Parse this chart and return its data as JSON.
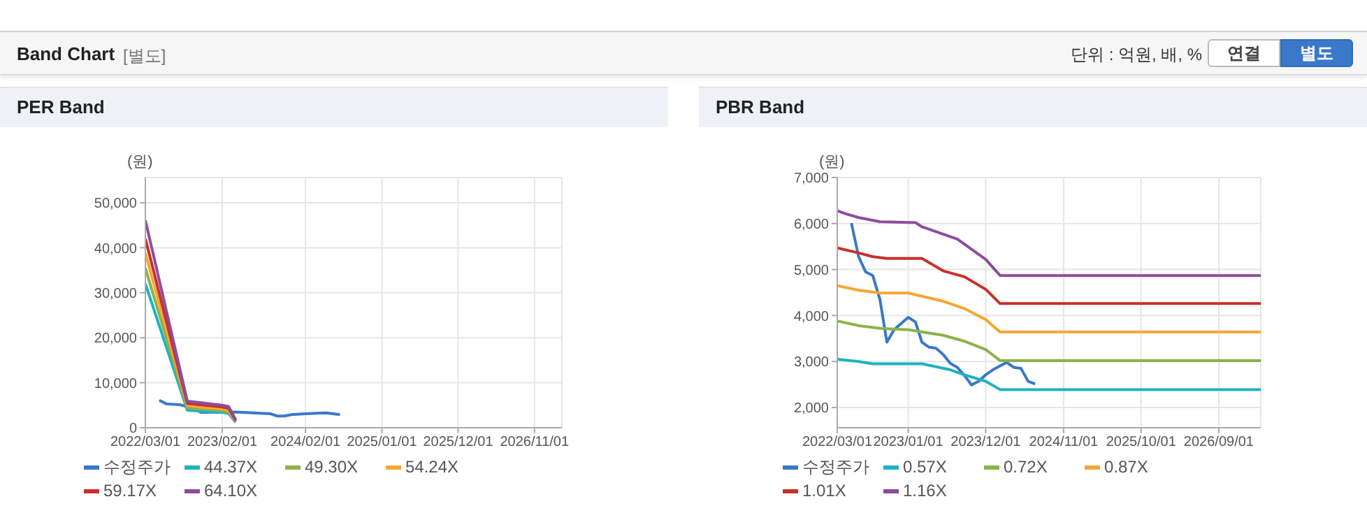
{
  "chart_data": [
    {
      "type": "other",
      "title": "Band Chart",
      "subtitle": "[별도]",
      "annotations": [
        "단위 : 억원, 배, %",
        "연결",
        "별도"
      ]
    },
    {
      "type": "line",
      "title": "PER Band",
      "ylabel": "(원)",
      "grid": true,
      "legend": "bottom",
      "marker": "none",
      "line_style": "solid",
      "xlim": [
        "2022-03-01",
        "2027-03-01"
      ],
      "xticks": [
        {
          "value": "2022-03-01",
          "label": "2022/03/01"
        },
        {
          "value": "2023-02-01",
          "label": "2023/02/01"
        },
        {
          "value": "2024-02-01",
          "label": "2024/02/01"
        },
        {
          "value": "2025-01-01",
          "label": "2025/01/01"
        },
        {
          "value": "2025-12-01",
          "label": "2025/12/01"
        },
        {
          "value": "2026-11-01",
          "label": "2026/11/01"
        }
      ],
      "ylim": [
        0,
        55600
      ],
      "yticks": [
        0,
        {
          "value": 10000,
          "label": "10,000"
        },
        {
          "value": 20000,
          "label": "20,000"
        },
        {
          "value": 30000,
          "label": "30,000"
        },
        {
          "value": 40000,
          "label": "40,000"
        },
        {
          "value": 50000,
          "label": "50,000"
        }
      ],
      "series": [
        {
          "name": "수정주가",
          "color": "#3a78c9",
          "x": [
            "2022-05-01",
            "2022-06-01",
            "2022-08-01",
            "2022-10-01",
            "2022-11-01",
            "2023-04-01",
            "2023-09-01",
            "2023-10-01",
            "2023-11-01",
            "2023-12-01",
            "2024-02-01",
            "2024-05-01",
            "2024-07-01"
          ],
          "values": [
            6100,
            5300,
            5100,
            4200,
            3400,
            3500,
            3100,
            2600,
            2600,
            2900,
            3100,
            3300,
            2900
          ]
        },
        {
          "name": "44.37X",
          "color": "#1fb2c2",
          "x": [
            "2022-03-01",
            "2022-09-01",
            "2023-02-01",
            "2023-03-01",
            "2023-04-01"
          ],
          "values": [
            32000,
            3900,
            3400,
            3200,
            1200
          ]
        },
        {
          "name": "49.30X",
          "color": "#8cb24a",
          "x": [
            "2022-03-01",
            "2022-09-01",
            "2023-02-01",
            "2023-03-01",
            "2023-04-01"
          ],
          "values": [
            35500,
            4400,
            3800,
            3500,
            1400
          ]
        },
        {
          "name": "54.24X",
          "color": "#f5a733",
          "x": [
            "2022-03-01",
            "2022-09-01",
            "2023-02-01",
            "2023-03-01",
            "2023-04-01"
          ],
          "values": [
            38800,
            4900,
            4200,
            3900,
            1500
          ]
        },
        {
          "name": "59.17X",
          "color": "#c9302c",
          "x": [
            "2022-03-01",
            "2022-09-01",
            "2023-02-01",
            "2023-03-01",
            "2023-04-01"
          ],
          "values": [
            42000,
            5400,
            4600,
            4300,
            1600
          ]
        },
        {
          "name": "64.10X",
          "color": "#8e4c9e",
          "x": [
            "2022-03-01",
            "2022-09-01",
            "2023-02-01",
            "2023-03-01",
            "2023-04-01"
          ],
          "values": [
            46100,
            5900,
            5000,
            4700,
            1800
          ]
        }
      ]
    },
    {
      "type": "line",
      "title": "PBR Band",
      "ylabel": "(원)",
      "grid": true,
      "legend": "bottom",
      "marker": "none",
      "line_style": "solid",
      "xlim": [
        "2022-03-01",
        "2027-03-01"
      ],
      "xticks": [
        {
          "value": "2022-03-01",
          "label": "2022/03/01"
        },
        {
          "value": "2023-01-01",
          "label": "2023/01/01"
        },
        {
          "value": "2023-12-01",
          "label": "2023/12/01"
        },
        {
          "value": "2024-11-01",
          "label": "2024/11/01"
        },
        {
          "value": "2025-10-01",
          "label": "2025/10/01"
        },
        {
          "value": "2026-09-01",
          "label": "2026/09/01"
        }
      ],
      "ylim": [
        1560,
        7000
      ],
      "yticks": [
        {
          "value": 2000,
          "label": "2,000"
        },
        {
          "value": 3000,
          "label": "3,000"
        },
        {
          "value": 4000,
          "label": "4,000"
        },
        {
          "value": 5000,
          "label": "5,000"
        },
        {
          "value": 6000,
          "label": "6,000"
        },
        {
          "value": 7000,
          "label": "7,000"
        }
      ],
      "series": [
        {
          "name": "수정주가",
          "color": "#3a78c9",
          "x": [
            "2022-05-01",
            "2022-06-01",
            "2022-07-01",
            "2022-08-01",
            "2022-09-01",
            "2022-10-01",
            "2022-11-01",
            "2023-01-01",
            "2023-02-01",
            "2023-03-01",
            "2023-04-01",
            "2023-05-01",
            "2023-06-01",
            "2023-07-01",
            "2023-08-01",
            "2023-09-01",
            "2023-10-01",
            "2023-11-01",
            "2023-12-01",
            "2024-01-01",
            "2024-03-01",
            "2024-04-01",
            "2024-05-01",
            "2024-06-01",
            "2024-07-01"
          ],
          "values": [
            6010,
            5280,
            4950,
            4870,
            4350,
            3420,
            3690,
            3960,
            3860,
            3420,
            3310,
            3290,
            3150,
            2960,
            2870,
            2690,
            2490,
            2570,
            2710,
            2820,
            2980,
            2870,
            2850,
            2570,
            2510
          ]
        },
        {
          "name": "0.57X",
          "color": "#1fb2c2",
          "x": [
            "2022-03-01",
            "2022-06-01",
            "2022-08-01",
            "2023-03-01",
            "2023-07-01",
            "2023-09-01",
            "2023-12-01",
            "2024-02-01",
            "2027-03-01"
          ],
          "values": [
            3050,
            3000,
            2950,
            2950,
            2820,
            2710,
            2570,
            2390,
            2390
          ]
        },
        {
          "name": "0.72X",
          "color": "#8cb24a",
          "x": [
            "2022-03-01",
            "2022-06-01",
            "2022-09-01",
            "2023-01-01",
            "2023-06-01",
            "2023-09-01",
            "2023-12-01",
            "2024-02-01",
            "2027-03-01"
          ],
          "values": [
            3880,
            3780,
            3720,
            3690,
            3570,
            3440,
            3260,
            3020,
            3020
          ]
        },
        {
          "name": "0.87X",
          "color": "#f5a733",
          "x": [
            "2022-03-01",
            "2022-06-01",
            "2022-09-01",
            "2023-01-01",
            "2023-06-01",
            "2023-09-01",
            "2023-12-01",
            "2024-02-01",
            "2027-03-01"
          ],
          "values": [
            4650,
            4550,
            4490,
            4490,
            4310,
            4150,
            3910,
            3640,
            3640
          ]
        },
        {
          "name": "1.01X",
          "color": "#c9302c",
          "x": [
            "2022-03-01",
            "2022-06-01",
            "2022-08-01",
            "2022-10-01",
            "2023-03-01",
            "2023-06-01",
            "2023-09-01",
            "2023-12-01",
            "2024-02-01",
            "2027-03-01"
          ],
          "values": [
            5470,
            5360,
            5280,
            5240,
            5240,
            4970,
            4840,
            4570,
            4260,
            4260
          ]
        },
        {
          "name": "1.16X",
          "color": "#8e4c9e",
          "x": [
            "2022-03-01",
            "2022-04-01",
            "2022-06-01",
            "2022-09-01",
            "2023-02-01",
            "2023-03-01",
            "2023-08-01",
            "2023-12-01",
            "2024-02-01",
            "2027-03-01"
          ],
          "values": [
            6280,
            6220,
            6130,
            6040,
            6020,
            5930,
            5660,
            5220,
            4870,
            4870
          ]
        }
      ]
    }
  ]
}
